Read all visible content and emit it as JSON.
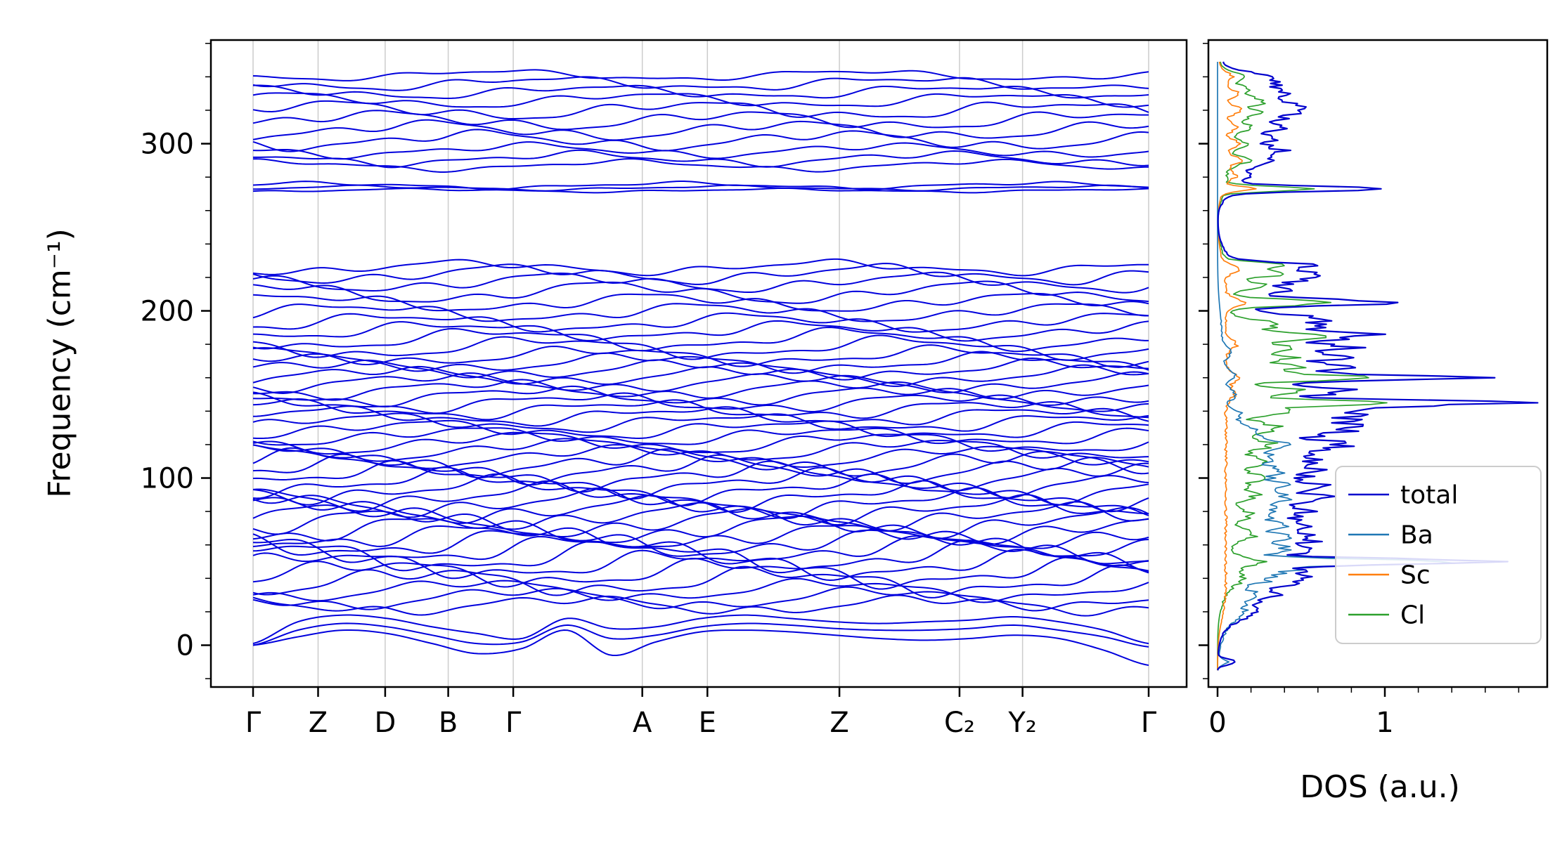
{
  "chart_data": {
    "type": "line",
    "title": "",
    "band": {
      "ylabel": "Frequency (cm⁻¹)",
      "yticks": [
        0,
        100,
        200,
        300
      ],
      "ylim": [
        -25,
        362
      ],
      "line_color": "#0000dd",
      "grid_color": "#cccccc",
      "kpath": {
        "labels": [
          "Γ",
          "Z",
          "D",
          "B",
          "Γ",
          "A",
          "E",
          "Z",
          "C₂",
          "Y₂",
          "Γ"
        ],
        "fractions": [
          0,
          0.0726,
          0.1475,
          0.2179,
          0.2905,
          0.4346,
          0.5073,
          0.6547,
          0.7888,
          0.8592,
          1.0
        ]
      },
      "acoustic_bands": [
        [
          0,
          5,
          9,
          7,
          1,
          -5,
          -2,
          9,
          -6,
          2,
          8,
          9,
          8,
          6,
          4,
          3,
          4,
          6,
          4,
          -3,
          -12
        ],
        [
          0,
          9,
          13,
          11,
          6,
          1,
          2,
          12,
          4,
          6,
          11,
          13,
          12,
          10,
          9,
          9,
          10,
          12,
          9,
          5,
          -1
        ],
        [
          1,
          14,
          18,
          16,
          11,
          7,
          4,
          16,
          10,
          11,
          16,
          18,
          16,
          14,
          13,
          14,
          15,
          17,
          14,
          9,
          1
        ]
      ],
      "optical_bands": [
        [
          24,
          4,
          2
        ],
        [
          28,
          5,
          2
        ],
        [
          33,
          5,
          2
        ],
        [
          38,
          6,
          3
        ],
        [
          43,
          6,
          3
        ],
        [
          48,
          6,
          3
        ],
        [
          53,
          7,
          3
        ],
        [
          57,
          6,
          3
        ],
        [
          61,
          6,
          3
        ],
        [
          65,
          5,
          3
        ],
        [
          69,
          6,
          3
        ],
        [
          73,
          6,
          3
        ],
        [
          77,
          5,
          3
        ],
        [
          81,
          5,
          3
        ],
        [
          85,
          5,
          3
        ],
        [
          89,
          5,
          3
        ],
        [
          93,
          5,
          3
        ],
        [
          97,
          5,
          3
        ],
        [
          101,
          5,
          3
        ],
        [
          105,
          5,
          3
        ],
        [
          109,
          5,
          3
        ],
        [
          113,
          5,
          2
        ],
        [
          117,
          5,
          2
        ],
        [
          121,
          5,
          2
        ],
        [
          125,
          4,
          2
        ],
        [
          129,
          4,
          2
        ],
        [
          133,
          4,
          2
        ],
        [
          137,
          4,
          2
        ],
        [
          141,
          4,
          2
        ],
        [
          145,
          4,
          2
        ],
        [
          149,
          4,
          2
        ],
        [
          153,
          4,
          2
        ],
        [
          157,
          4,
          2
        ],
        [
          161,
          4,
          2
        ],
        [
          165,
          4,
          2
        ],
        [
          169,
          4,
          2
        ],
        [
          173,
          4,
          2
        ],
        [
          178,
          5,
          2
        ],
        [
          183,
          5,
          2
        ],
        [
          188,
          4,
          2
        ],
        [
          193,
          4,
          2
        ],
        [
          199,
          4,
          2
        ],
        [
          205,
          4,
          2
        ],
        [
          211,
          5,
          2
        ],
        [
          217,
          4,
          2
        ],
        [
          222,
          4,
          2
        ],
        [
          226,
          3,
          1.5
        ],
        [
          272,
          0.8,
          0.4
        ],
        [
          273.5,
          1,
          0.5
        ],
        [
          275,
          1.5,
          0.7
        ],
        [
          287,
          2.5,
          1
        ],
        [
          291,
          3,
          1.5
        ],
        [
          296,
          3,
          1.5
        ],
        [
          302,
          4,
          2
        ],
        [
          308,
          4,
          2
        ],
        [
          314,
          4,
          2
        ],
        [
          320,
          4,
          2
        ],
        [
          326,
          3.5,
          1.5
        ],
        [
          331,
          3,
          1.5
        ],
        [
          336,
          3,
          1.5
        ],
        [
          341,
          2.5,
          1
        ]
      ]
    },
    "dos": {
      "xlabel": "DOS (a.u.)",
      "xticks": [
        0,
        1
      ],
      "xlim": [
        -0.05,
        1.97
      ],
      "legend": [
        "total",
        "Ba",
        "Sc",
        "Cl"
      ],
      "series": [
        {
          "name": "total",
          "color": "#0000cd",
          "baseline": [
            [
              13,
              232,
              0.15,
              5
            ],
            [
              268,
              346,
              0.12,
              3
            ]
          ],
          "peaks": [
            [
              -10,
              0.12,
              1.5
            ],
            [
              20,
              0.1,
              4
            ],
            [
              30,
              0.18,
              3.5
            ],
            [
              38,
              0.25,
              3
            ],
            [
              44,
              0.32,
              3
            ],
            [
              50,
              1.65,
              1.6
            ],
            [
              57,
              0.42,
              2.5
            ],
            [
              64,
              0.45,
              3
            ],
            [
              72,
              0.4,
              3
            ],
            [
              80,
              0.38,
              3
            ],
            [
              88,
              0.46,
              3
            ],
            [
              96,
              0.42,
              3
            ],
            [
              104,
              0.42,
              3
            ],
            [
              112,
              0.44,
              3
            ],
            [
              120,
              0.55,
              3
            ],
            [
              128,
              0.5,
              3
            ],
            [
              134,
              0.55,
              3
            ],
            [
              140,
              0.6,
              2.5
            ],
            [
              145,
              1.55,
              1.6
            ],
            [
              152,
              0.7,
              2.2
            ],
            [
              160,
              1.3,
              1.8
            ],
            [
              166,
              0.6,
              2.2
            ],
            [
              172,
              0.55,
              2.2
            ],
            [
              178,
              0.6,
              2.2
            ],
            [
              185,
              0.78,
              2.2
            ],
            [
              191,
              0.45,
              2.2
            ],
            [
              196,
              0.4,
              2.2
            ],
            [
              205,
              0.88,
              1.8
            ],
            [
              212,
              0.25,
              2.2
            ],
            [
              218,
              0.3,
              2.2
            ],
            [
              222,
              0.42,
              1.8
            ],
            [
              227,
              0.48,
              1.8
            ],
            [
              273,
              0.95,
              1.4
            ],
            [
              281,
              0.1,
              2
            ],
            [
              289,
              0.2,
              2.5
            ],
            [
              296,
              0.25,
              2.5
            ],
            [
              303,
              0.2,
              2.5
            ],
            [
              310,
              0.25,
              2.5
            ],
            [
              317,
              0.3,
              2.5
            ],
            [
              323,
              0.35,
              2.5
            ],
            [
              330,
              0.25,
              2.5
            ],
            [
              336,
              0.2,
              2.5
            ],
            [
              341,
              0.15,
              2
            ]
          ]
        },
        {
          "name": "Ba",
          "color": "#1f77b4",
          "baseline": [
            [
              8,
              132,
              0.1,
              6
            ],
            [
              130,
              200,
              0.03,
              8
            ]
          ],
          "peaks": [
            [
              -10,
              0.06,
              1.5
            ],
            [
              20,
              0.08,
              4
            ],
            [
              30,
              0.14,
              3
            ],
            [
              40,
              0.22,
              3
            ],
            [
              46,
              0.3,
              2.5
            ],
            [
              50,
              1.35,
              1.6
            ],
            [
              57,
              0.3,
              2.5
            ],
            [
              64,
              0.3,
              3
            ],
            [
              72,
              0.28,
              3
            ],
            [
              80,
              0.26,
              3
            ],
            [
              88,
              0.3,
              3
            ],
            [
              96,
              0.26,
              3
            ],
            [
              104,
              0.28,
              3
            ],
            [
              112,
              0.24,
              3
            ],
            [
              120,
              0.28,
              3
            ],
            [
              128,
              0.16,
              3
            ],
            [
              138,
              0.1,
              3
            ],
            [
              150,
              0.08,
              3
            ],
            [
              162,
              0.08,
              3
            ],
            [
              175,
              0.05,
              3
            ]
          ]
        },
        {
          "name": "Sc",
          "color": "#ff7f0e",
          "baseline": [
            [
              15,
              232,
              0.05,
              6
            ],
            [
              268,
              345,
              0.04,
              4
            ]
          ],
          "peaks": [
            [
              150,
              0.05,
              3
            ],
            [
              160,
              0.07,
              3
            ],
            [
              180,
              0.06,
              3
            ],
            [
              205,
              0.1,
              2.5
            ],
            [
              225,
              0.08,
              2.5
            ],
            [
              273,
              0.2,
              1.4
            ],
            [
              281,
              0.07,
              2.5
            ],
            [
              290,
              0.1,
              2.5
            ],
            [
              300,
              0.08,
              2.5
            ],
            [
              310,
              0.08,
              2.5
            ],
            [
              320,
              0.1,
              2.5
            ],
            [
              330,
              0.08,
              2.5
            ],
            [
              340,
              0.06,
              2.5
            ]
          ]
        },
        {
          "name": "Cl",
          "color": "#2ca02c",
          "baseline": [
            [
              28,
              232,
              0.08,
              6
            ],
            [
              268,
              345,
              0.06,
              4
            ]
          ],
          "peaks": [
            [
              40,
              0.08,
              4
            ],
            [
              50,
              0.18,
              2.5
            ],
            [
              66,
              0.15,
              3
            ],
            [
              78,
              0.12,
              3
            ],
            [
              90,
              0.15,
              3
            ],
            [
              100,
              0.18,
              3
            ],
            [
              110,
              0.2,
              3
            ],
            [
              120,
              0.25,
              3
            ],
            [
              130,
              0.3,
              3
            ],
            [
              140,
              0.35,
              2.5
            ],
            [
              145,
              0.85,
              1.6
            ],
            [
              152,
              0.42,
              2.2
            ],
            [
              160,
              0.8,
              1.8
            ],
            [
              166,
              0.38,
              2.2
            ],
            [
              172,
              0.34,
              2.2
            ],
            [
              178,
              0.4,
              2.2
            ],
            [
              185,
              0.55,
              2.2
            ],
            [
              192,
              0.3,
              2.2
            ],
            [
              205,
              0.6,
              1.8
            ],
            [
              215,
              0.2,
              2.2
            ],
            [
              222,
              0.3,
              1.8
            ],
            [
              227,
              0.35,
              1.8
            ],
            [
              273,
              0.5,
              1.4
            ],
            [
              290,
              0.12,
              2.5
            ],
            [
              300,
              0.12,
              2.5
            ],
            [
              310,
              0.15,
              2.5
            ],
            [
              318,
              0.18,
              2.5
            ],
            [
              325,
              0.2,
              2.5
            ],
            [
              332,
              0.15,
              2.5
            ],
            [
              340,
              0.1,
              2.5
            ]
          ]
        }
      ]
    }
  }
}
